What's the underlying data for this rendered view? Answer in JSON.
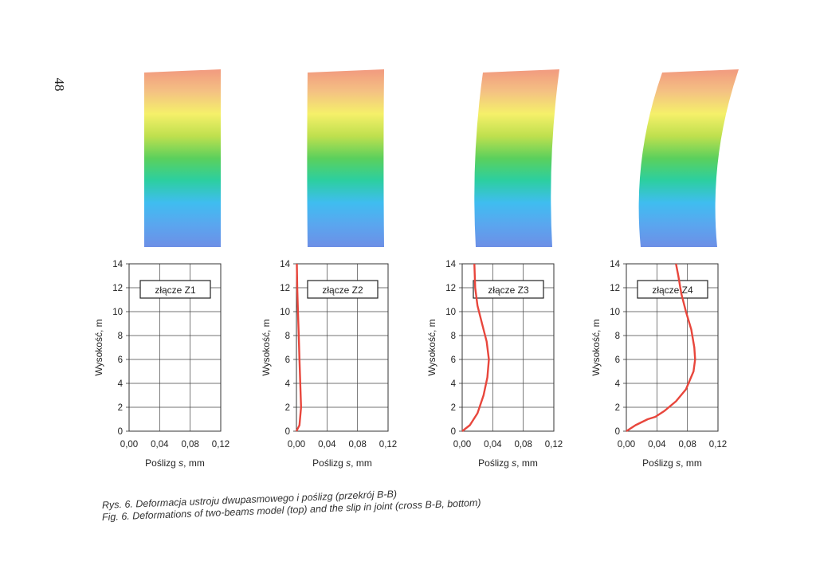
{
  "page_number": "48",
  "colors": {
    "curve": "#e8463c",
    "grid": "#444444",
    "gradient": [
      "#f29a7f",
      "#f4c183",
      "#f5f06a",
      "#bfe04e",
      "#5bd05c",
      "#2ccfa0",
      "#3fbdf0",
      "#5aa6ef",
      "#6d8fe6"
    ]
  },
  "chart_data": [
    {
      "type": "line",
      "legend_label": "złącze Z1",
      "xlabel_prefix": "Poślizg ",
      "xlabel_var": "s",
      "xlabel_suffix": ", mm",
      "ylabel": "Wysokość, m",
      "xlim": [
        0,
        0.12
      ],
      "ylim": [
        0,
        14
      ],
      "xticks": [
        "0,00",
        "0,04",
        "0,08",
        "0,12"
      ],
      "yticks": [
        "0",
        "2",
        "4",
        "6",
        "8",
        "10",
        "12",
        "14"
      ],
      "grid": true,
      "series": [
        {
          "points": []
        }
      ],
      "deformation_shape": {
        "top_shift": 0.0,
        "mid_bulge": 0.0
      }
    },
    {
      "type": "line",
      "legend_label": "złącze Z2",
      "xlabel_prefix": "Poślizg ",
      "xlabel_var": "s",
      "xlabel_suffix": ", mm",
      "ylabel": "Wysokość, m",
      "xlim": [
        0,
        0.12
      ],
      "ylim": [
        0,
        14
      ],
      "xticks": [
        "0,00",
        "0,04",
        "0,08",
        "0,12"
      ],
      "yticks": [
        "0",
        "2",
        "4",
        "6",
        "8",
        "10",
        "12",
        "14"
      ],
      "grid": true,
      "series": [
        {
          "points": [
            [
              0.0,
              0.0
            ],
            [
              0.004,
              0.5
            ],
            [
              0.006,
              2
            ],
            [
              0.005,
              4
            ],
            [
              0.004,
              6
            ],
            [
              0.003,
              8
            ],
            [
              0.002,
              10
            ],
            [
              0.001,
              12
            ],
            [
              0.0005,
              14
            ]
          ]
        }
      ],
      "deformation_shape": {
        "top_shift": 0.0,
        "mid_bulge": 0.01
      }
    },
    {
      "type": "line",
      "legend_label": "złącze Z3",
      "xlabel_prefix": "Poślizg ",
      "xlabel_var": "s",
      "xlabel_suffix": ", mm",
      "ylabel": "Wysokość, m",
      "xlim": [
        0,
        0.12
      ],
      "ylim": [
        0,
        14
      ],
      "xticks": [
        "0,00",
        "0,04",
        "0,08",
        "0,12"
      ],
      "yticks": [
        "0",
        "2",
        "4",
        "6",
        "8",
        "10",
        "12",
        "14"
      ],
      "grid": true,
      "series": [
        {
          "points": [
            [
              0.0,
              0.0
            ],
            [
              0.01,
              0.5
            ],
            [
              0.02,
              1.5
            ],
            [
              0.028,
              3
            ],
            [
              0.033,
              4.5
            ],
            [
              0.035,
              6
            ],
            [
              0.032,
              7.5
            ],
            [
              0.026,
              9
            ],
            [
              0.02,
              10.5
            ],
            [
              0.017,
              12
            ],
            [
              0.016,
              14
            ]
          ]
        }
      ],
      "deformation_shape": {
        "top_shift": 0.03,
        "mid_bulge": 0.05
      }
    },
    {
      "type": "line",
      "legend_label": "złącze Z4",
      "xlabel_prefix": "Poślizg ",
      "xlabel_var": "s",
      "xlabel_suffix": ", mm",
      "ylabel": "Wysokość, m",
      "xlim": [
        0,
        0.12
      ],
      "ylim": [
        0,
        14
      ],
      "xticks": [
        "0,00",
        "0,04",
        "0,08",
        "0,12"
      ],
      "yticks": [
        "0",
        "2",
        "4",
        "6",
        "8",
        "10",
        "12",
        "14"
      ],
      "grid": true,
      "series": [
        {
          "points": [
            [
              0.0,
              0.0
            ],
            [
              0.012,
              0.5
            ],
            [
              0.028,
              1.0
            ],
            [
              0.038,
              1.2
            ],
            [
              0.05,
              1.7
            ],
            [
              0.065,
              2.5
            ],
            [
              0.078,
              3.5
            ],
            [
              0.088,
              5
            ],
            [
              0.09,
              6
            ],
            [
              0.089,
              7
            ],
            [
              0.085,
              8.5
            ],
            [
              0.078,
              10
            ],
            [
              0.072,
              11.5
            ],
            [
              0.068,
              13
            ],
            [
              0.065,
              14
            ]
          ]
        }
      ],
      "deformation_shape": {
        "top_shift": 0.09,
        "mid_bulge": 0.09
      }
    }
  ],
  "caption": {
    "pl": "Rys. 6. Deformacja ustroju dwupasmowego i poślizg (przekrój B-B)",
    "en": "Fig. 6. Deformations of two-beams model (top) and the slip in joint (cross B-B, bottom)"
  }
}
